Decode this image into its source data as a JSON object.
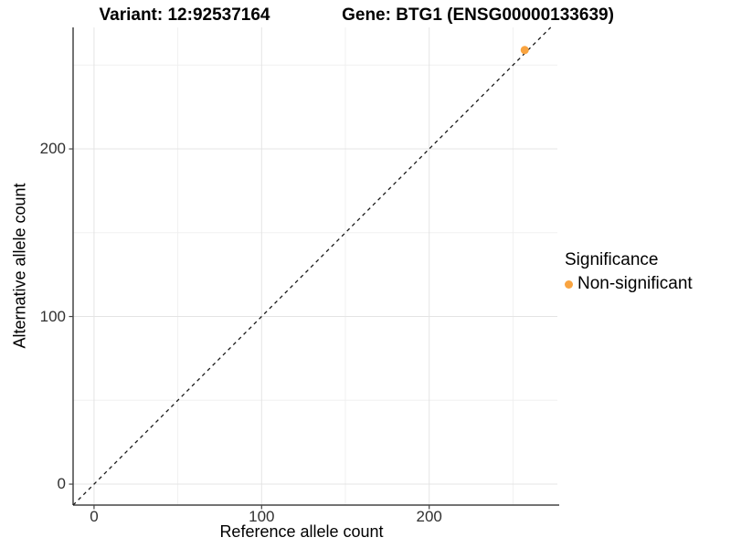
{
  "chart_data": {
    "type": "scatter",
    "title_left": "Variant: 12:92537164",
    "title_right": "Gene: BTG1 (ENSG00000133639)",
    "xlabel": "Reference allele count",
    "ylabel": "Alternative allele count",
    "x_ticks": [
      0,
      100,
      200
    ],
    "y_ticks": [
      0,
      100,
      200
    ],
    "x_minor_ticks": [
      50,
      150,
      250
    ],
    "y_minor_ticks": [
      50,
      150,
      250
    ],
    "xlim": [
      -12.5,
      276.5
    ],
    "ylim": [
      -12.5,
      272.5
    ],
    "grid": true,
    "identity_line": {
      "type": "dashed",
      "color": "#1a1a1a",
      "slope": 1,
      "intercept": 0
    },
    "points": [
      {
        "x": 257,
        "y": 259,
        "series": "Non-significant",
        "color": "#F9A440"
      }
    ],
    "legend": {
      "position": "right",
      "title": "Significance",
      "entries": [
        {
          "label": "Non-significant",
          "color": "#F9A440"
        }
      ]
    },
    "colors": {
      "major_grid": "#e4e4e4",
      "minor_grid": "#f0f0f0",
      "axis_line": "#454545",
      "tick_mark": "#454545",
      "point": "#F9A440"
    }
  }
}
